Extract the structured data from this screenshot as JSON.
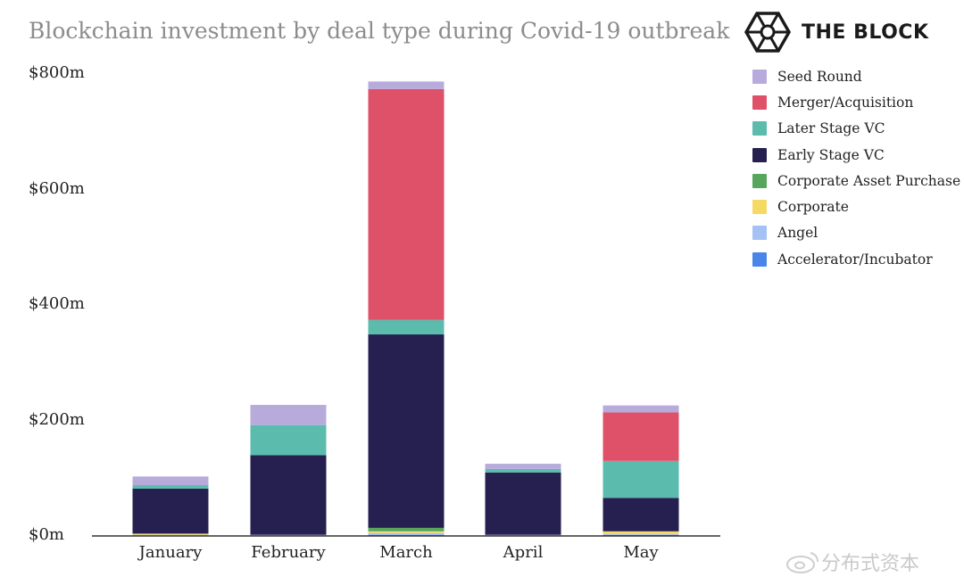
{
  "chart_data": {
    "type": "bar",
    "stacked": true,
    "title": "Blockchain investment by deal type during Covid-19 outbreak",
    "brand": "THE BLOCK",
    "categories": [
      "January",
      "February",
      "March",
      "April",
      "May"
    ],
    "yticks": [
      "$0m",
      "$200m",
      "$400m",
      "$600m",
      "$800m"
    ],
    "ylim": [
      0,
      800
    ],
    "grid": false,
    "legend_position": "right",
    "series": [
      {
        "name": "Accelerator/Incubator",
        "color": "#4a86e8",
        "values": [
          1,
          1,
          2,
          1,
          2
        ]
      },
      {
        "name": "Angel",
        "color": "#a4c2f4",
        "values": [
          1,
          1,
          3,
          1,
          1
        ]
      },
      {
        "name": "Corporate",
        "color": "#f6d964",
        "values": [
          2,
          0,
          3,
          0,
          5
        ]
      },
      {
        "name": "Corporate Asset Purchase",
        "color": "#57a65b",
        "values": [
          0,
          0,
          6,
          0,
          0
        ]
      },
      {
        "name": "Early Stage VC",
        "color": "#262050",
        "values": [
          78,
          138,
          335,
          108,
          58
        ]
      },
      {
        "name": "Later Stage VC",
        "color": "#5bbcae",
        "values": [
          6,
          52,
          25,
          6,
          64
        ]
      },
      {
        "name": "Merger/Acquisition",
        "color": "#de5168",
        "values": [
          0,
          0,
          400,
          0,
          84
        ]
      },
      {
        "name": "Seed Round",
        "color": "#b7abdc",
        "values": [
          15,
          35,
          13,
          9,
          12
        ]
      }
    ],
    "legend_order": [
      "Seed Round",
      "Merger/Acquisition",
      "Later Stage VC",
      "Early Stage VC",
      "Corporate Asset Purchase",
      "Corporate",
      "Angel",
      "Accelerator/Incubator"
    ]
  },
  "watermark": "分布式资本"
}
